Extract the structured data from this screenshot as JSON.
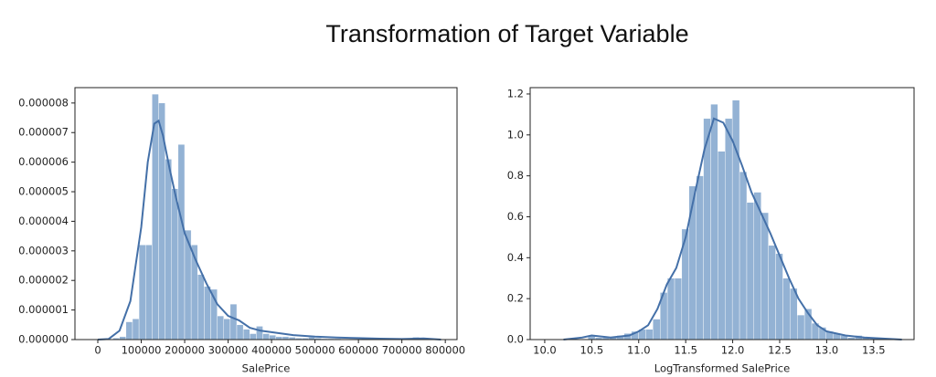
{
  "title": "Transformation of Target Variable",
  "chart_data": [
    {
      "type": "histogram",
      "xlabel": "SalePrice",
      "bins": [
        34900,
        49900,
        64900,
        79900,
        94900,
        109900,
        124900,
        139900,
        154900,
        169900,
        184900,
        199900,
        214900,
        229900,
        244900,
        259900,
        274900,
        289900,
        304900,
        319900,
        334900,
        349900,
        364900,
        379900,
        394900,
        409900,
        424900,
        439900,
        454900,
        469900,
        484900,
        499900,
        514900,
        529900,
        544900,
        559900,
        574900,
        589900,
        604900,
        619900,
        634900,
        649900,
        664900,
        679900,
        694900,
        709900,
        724900,
        739900,
        754900
      ],
      "values": [
        5e-08,
        1e-07,
        6e-07,
        7e-07,
        3.2e-06,
        3.2e-06,
        8.3e-06,
        8e-06,
        6.1e-06,
        5.1e-06,
        6.6e-06,
        3.7e-06,
        3.2e-06,
        2.2e-06,
        1.8e-06,
        1.7e-06,
        8e-07,
        7e-07,
        1.2e-06,
        5e-07,
        3.5e-07,
        2e-07,
        4.5e-07,
        2e-07,
        1.5e-07,
        1e-07,
        1e-07,
        8e-08,
        5e-08,
        5e-08,
        8e-08,
        5e-08,
        3e-08,
        3e-08,
        3e-08,
        2e-08,
        1e-08,
        1e-08,
        2e-08,
        1e-08,
        1e-08,
        1e-08,
        0,
        0,
        0,
        0,
        8e-08,
        2e-08
      ],
      "color": "#93b2d4",
      "kde": {
        "x": [
          0,
          25000,
          50000,
          75000,
          100000,
          115000,
          130000,
          140000,
          150000,
          165000,
          180000,
          200000,
          225000,
          250000,
          275000,
          300000,
          325000,
          350000,
          375000,
          400000,
          450000,
          500000,
          550000,
          600000,
          650000,
          700000,
          750000,
          790000
        ],
        "values": [
          0,
          2e-08,
          3e-07,
          1.3e-06,
          3.8e-06,
          6e-06,
          7.3e-06,
          7.4e-06,
          6.9e-06,
          5.8e-06,
          4.8e-06,
          3.6e-06,
          2.7e-06,
          1.9e-06,
          1.2e-06,
          8e-07,
          6.5e-07,
          4e-07,
          3e-07,
          2.5e-07,
          1.5e-07,
          1e-07,
          7e-08,
          5e-08,
          3e-08,
          2e-08,
          4e-08,
          0
        ],
        "color": "#4470a8"
      },
      "xlim": [
        -52600,
        827000
      ],
      "xticks": [
        0,
        100000,
        200000,
        300000,
        400000,
        500000,
        600000,
        700000,
        800000
      ],
      "ylim": [
        0,
        8.52e-06
      ],
      "yticks": [
        {
          "value": 0,
          "label": "0.000000"
        },
        {
          "value": 1e-06,
          "label": "0.000001"
        },
        {
          "value": 2e-06,
          "label": "0.000002"
        },
        {
          "value": 3e-06,
          "label": "0.000003"
        },
        {
          "value": 4e-06,
          "label": "0.000004"
        },
        {
          "value": 5e-06,
          "label": "0.000005"
        },
        {
          "value": 6e-06,
          "label": "0.000006"
        },
        {
          "value": 7e-06,
          "label": "0.000007"
        },
        {
          "value": 8e-06,
          "label": "0.000008"
        }
      ]
    },
    {
      "type": "histogram",
      "xlabel": "LogTransformed SalePrice",
      "bins": [
        10.46,
        10.537,
        10.614,
        10.69,
        10.767,
        10.844,
        10.921,
        10.998,
        11.074,
        11.151,
        11.228,
        11.305,
        11.382,
        11.458,
        11.535,
        11.612,
        11.689,
        11.766,
        11.842,
        11.919,
        11.996,
        12.073,
        12.15,
        12.226,
        12.303,
        12.38,
        12.457,
        12.534,
        12.61,
        12.687,
        12.764,
        12.841,
        12.918,
        12.994,
        13.071,
        13.148,
        13.225,
        13.302,
        13.378,
        13.455,
        13.532
      ],
      "values": [
        0.02,
        0.01,
        0.01,
        0.01,
        0.02,
        0.03,
        0.04,
        0.05,
        0.05,
        0.1,
        0.23,
        0.3,
        0.3,
        0.54,
        0.75,
        0.8,
        1.08,
        1.15,
        0.92,
        1.08,
        1.17,
        0.82,
        0.67,
        0.72,
        0.62,
        0.46,
        0.42,
        0.3,
        0.25,
        0.12,
        0.15,
        0.08,
        0.06,
        0.04,
        0.03,
        0.02,
        0.01,
        0.02,
        0.01,
        0.01
      ],
      "color": "#93b2d4",
      "kde": {
        "x": [
          10.2,
          10.4,
          10.5,
          10.7,
          10.9,
          11.0,
          11.1,
          11.2,
          11.3,
          11.4,
          11.5,
          11.6,
          11.7,
          11.8,
          11.9,
          12.0,
          12.1,
          12.2,
          12.3,
          12.4,
          12.5,
          12.6,
          12.7,
          12.8,
          12.9,
          13.0,
          13.2,
          13.4,
          13.6,
          13.8
        ],
        "values": [
          0,
          0.01,
          0.02,
          0.01,
          0.02,
          0.04,
          0.07,
          0.15,
          0.27,
          0.35,
          0.5,
          0.72,
          0.93,
          1.08,
          1.06,
          0.97,
          0.85,
          0.72,
          0.62,
          0.52,
          0.41,
          0.3,
          0.2,
          0.13,
          0.07,
          0.04,
          0.02,
          0.01,
          0.005,
          0
        ],
        "color": "#4470a8"
      },
      "xlim": [
        9.845,
        13.93
      ],
      "xticks": [
        {
          "value": 10,
          "label": "10.0"
        },
        10.5,
        {
          "value": 11,
          "label": "11.0"
        },
        11.5,
        {
          "value": 12,
          "label": "12.0"
        },
        12.5,
        {
          "value": 13,
          "label": "13.0"
        },
        13.5
      ],
      "ylim": [
        0,
        1.231
      ],
      "yticks": [
        {
          "value": 0,
          "label": "0.0"
        },
        0.2,
        0.4,
        0.6,
        0.8,
        {
          "value": 1,
          "label": "1.0"
        },
        1.2
      ]
    }
  ]
}
